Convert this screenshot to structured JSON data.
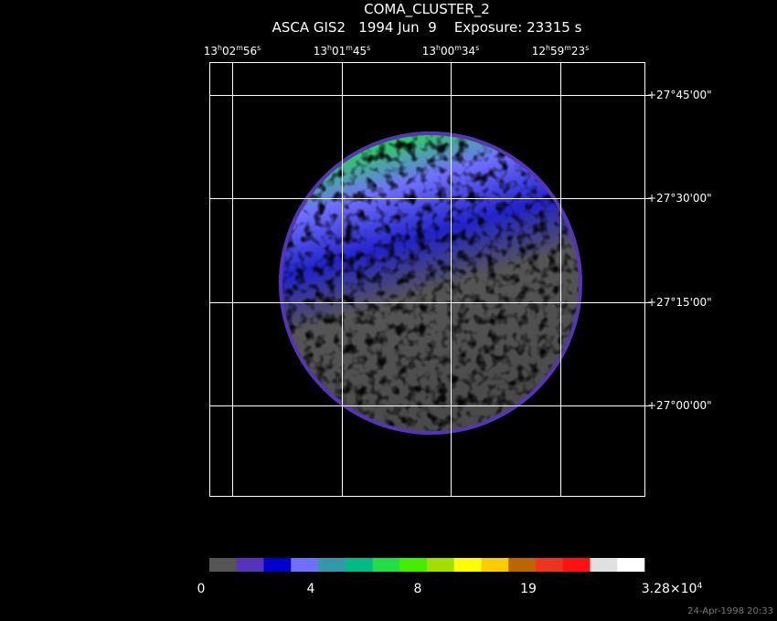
{
  "header": {
    "title": "COMA_CLUSTER_2",
    "subtitle": "ASCA GIS2   1994 Jun  9    Exposure: 23315 s"
  },
  "axes": {
    "ra_labels": [
      [
        "13",
        "h",
        "02",
        "m",
        "56",
        "s"
      ],
      [
        "13",
        "h",
        "01",
        "m",
        "45",
        "s"
      ],
      [
        "13",
        "h",
        "00",
        "m",
        "34",
        "s"
      ],
      [
        "12",
        "h",
        "59",
        "m",
        "23",
        "s"
      ]
    ],
    "dec_labels": [
      "+27°45'00\"",
      "+27°30'00\"",
      "+27°15'00\"",
      "+27°00'00\""
    ]
  },
  "colorbar": {
    "colors": [
      "#555555",
      "#5533bb",
      "#0000cc",
      "#7070ff",
      "#3399aa",
      "#00bb88",
      "#22dd44",
      "#44ee00",
      "#a0e000",
      "#ffff00",
      "#ffcc00",
      "#bb6600",
      "#ee3322",
      "#ff1111",
      "#e0e0e0",
      "#ffffff"
    ],
    "labels": [
      [
        "0"
      ],
      [
        "4"
      ],
      [
        "8"
      ],
      [
        "19"
      ],
      [
        "3.28×10",
        "4"
      ]
    ]
  },
  "footer": {
    "timestamp": "24-Apr-1998 20:33"
  }
}
